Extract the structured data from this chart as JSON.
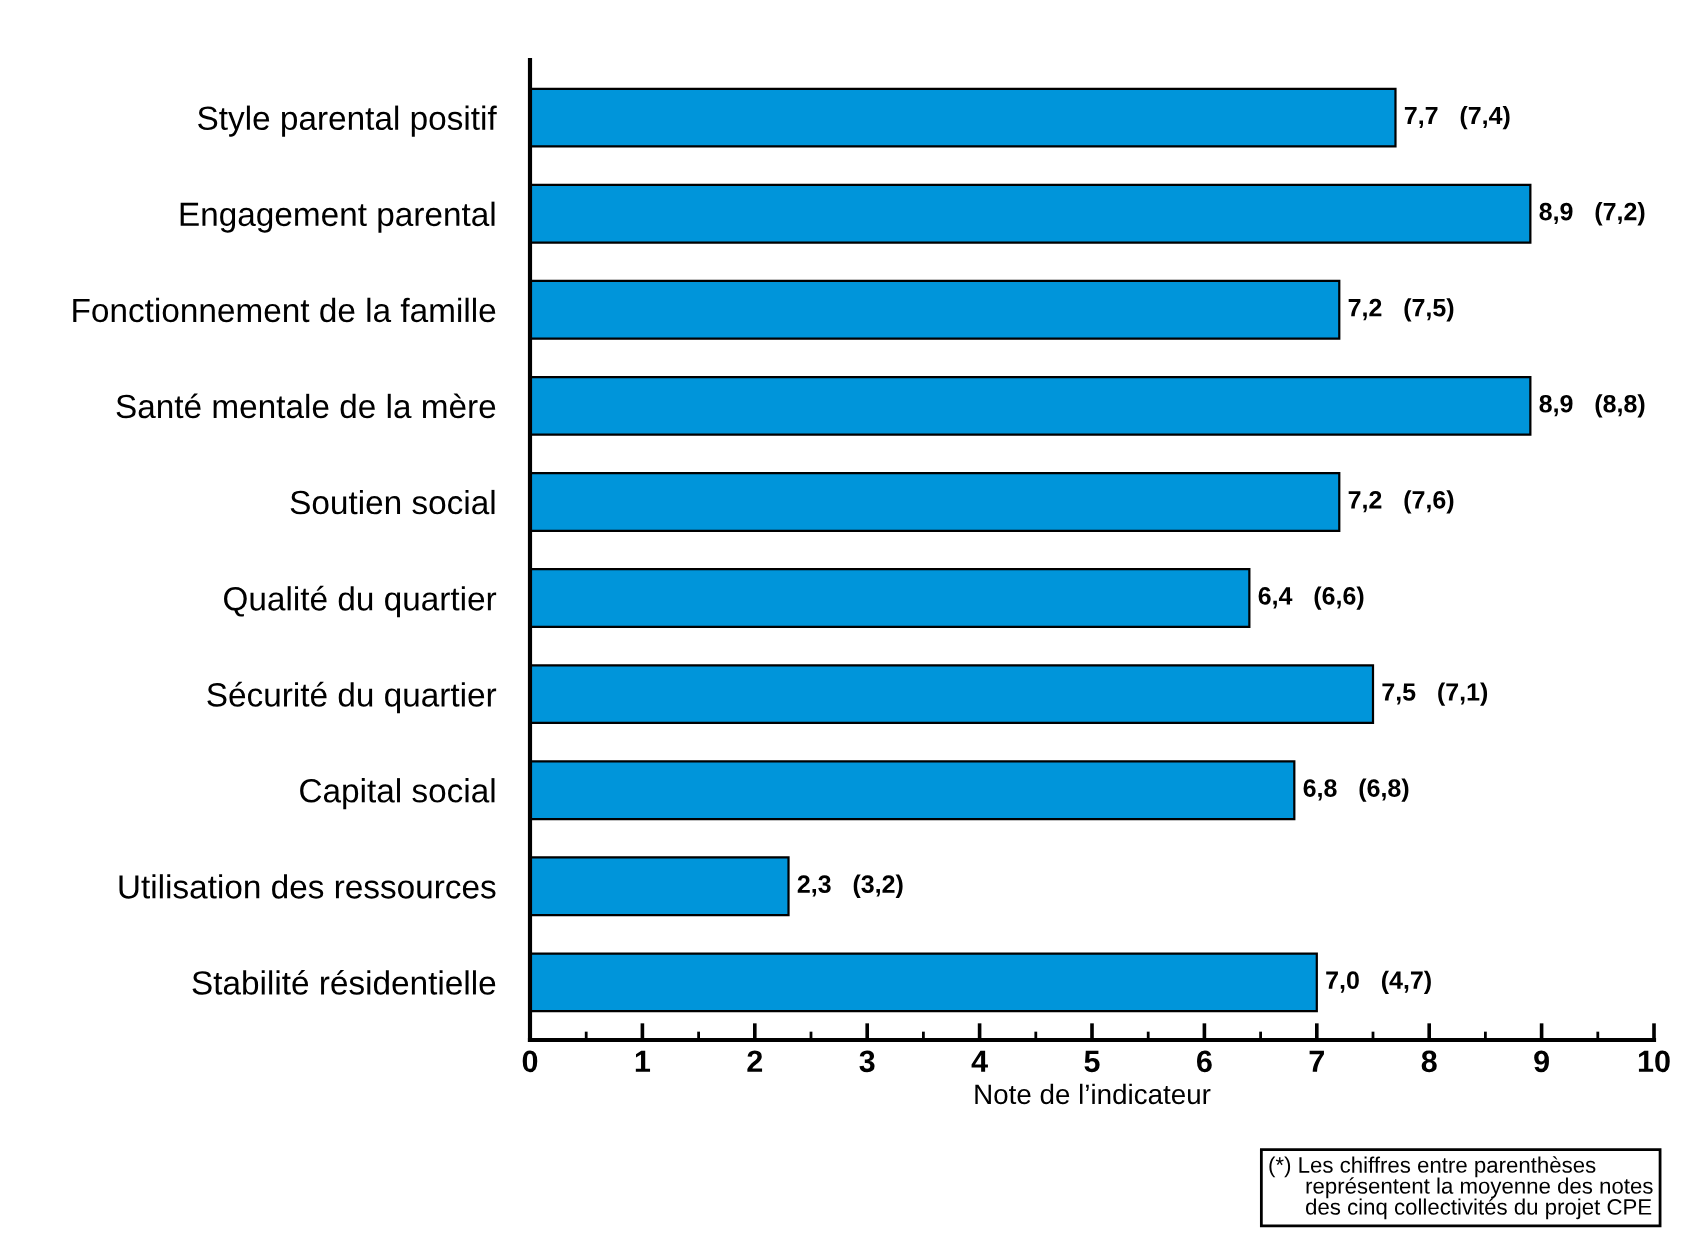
{
  "chart_data": {
    "type": "bar",
    "orientation": "horizontal",
    "xlabel": "Note de l’indicateur",
    "categories": [
      "Style parental positif",
      "Engagement parental",
      "Fonctionnement de la famille",
      "Santé mentale de la mère",
      "Soutien social",
      "Qualité du quartier",
      "Sécurité du quartier",
      "Capital social",
      "Utilisation des ressources",
      "Stabilité résidentielle"
    ],
    "values": [
      7.7,
      8.9,
      7.2,
      8.9,
      7.2,
      6.4,
      7.5,
      6.8,
      2.3,
      7.0
    ],
    "value_labels": [
      "7,7   (7,4)",
      "8,9   (7,2)",
      "7,2   (7,5)",
      "8,9   (8,8)",
      "7,2   (7,6)",
      "6,4   (6,6)",
      "7,5   (7,1)",
      "6,8   (6,8)",
      "2,3   (3,2)",
      "7,0   (4,7)"
    ],
    "color": "#0095da",
    "xlim": [
      0,
      10
    ],
    "xticks": [
      0,
      1,
      2,
      3,
      4,
      5,
      6,
      7,
      8,
      9,
      10
    ],
    "grid": false,
    "legend": false,
    "annotations": [
      "(*) Les chiffres entre parenthèses\n      représentent la moyenne des notes\n      des cinq collectivités du projet CPE"
    ]
  }
}
